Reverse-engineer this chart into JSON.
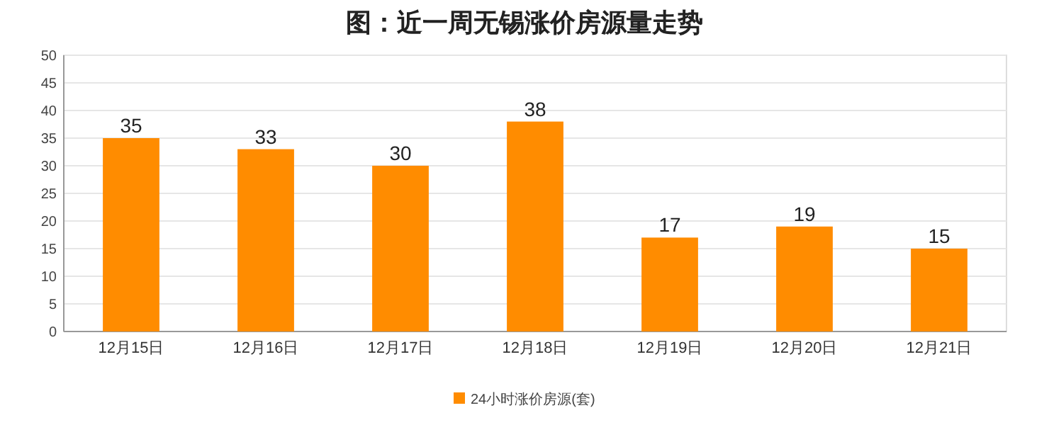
{
  "chart_data": {
    "type": "bar",
    "title": "图：近一周无锡涨价房源量走势",
    "categories": [
      "12月15日",
      "12月16日",
      "12月17日",
      "12月18日",
      "12月19日",
      "12月20日",
      "12月21日"
    ],
    "series": [
      {
        "name": "24小时涨价房源(套)",
        "color": "#ff8c00",
        "values": [
          35,
          33,
          30,
          38,
          17,
          19,
          15
        ]
      }
    ],
    "ylim": [
      0,
      50
    ],
    "yticks": [
      0,
      5,
      10,
      15,
      20,
      25,
      30,
      35,
      40,
      45,
      50
    ],
    "grid": "y",
    "legend": "bottom",
    "data_labels": true
  }
}
